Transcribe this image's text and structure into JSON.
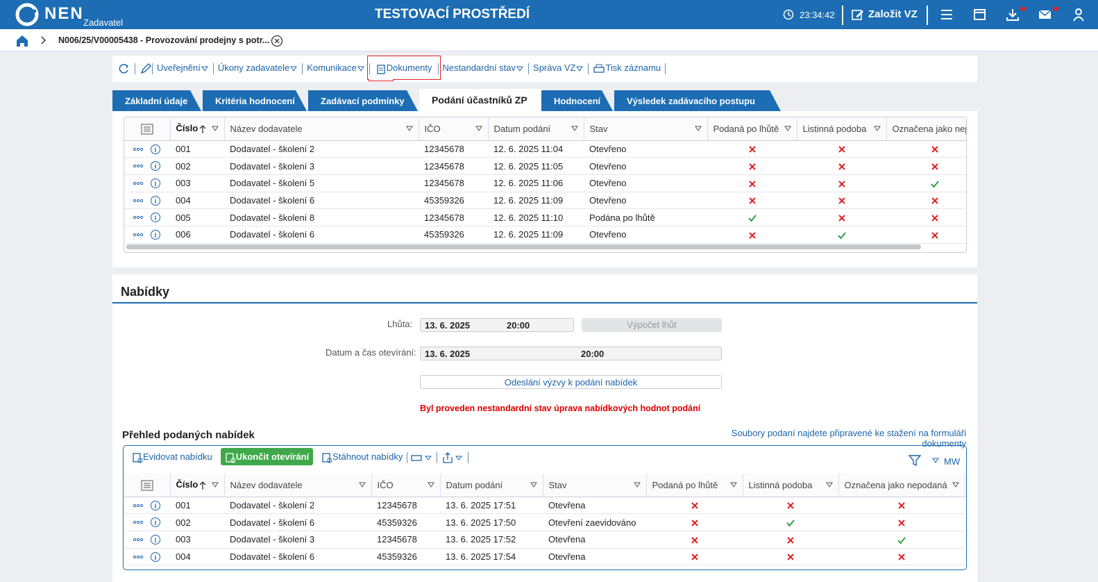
{
  "header": {
    "logo": "NEN",
    "role": "Zadavatel",
    "environment": "TESTOVACÍ PROSTŘEDÍ",
    "time": "23:34:42",
    "create": "Založit VZ"
  },
  "breadcrumb": {
    "title": "N006/25/V00005438 - Provozování prodejny s potr..."
  },
  "toolbar": [
    "Uveřejnění",
    "Úkony zadavatele",
    "Komunikace",
    "Dokumenty",
    "Nestandardní stav",
    "Správa VZ",
    "Tisk záznamu"
  ],
  "tabs": [
    "Základní údaje",
    "Kritéria hodnocení",
    "Zadávací podmínky",
    "Podání účastníků ZP",
    "Hodnocení",
    "Výsledek zadávacího postupu"
  ],
  "table1": {
    "headers": [
      "Číslo",
      "Název dodavatele",
      "IČO",
      "Datum podání",
      "Stav",
      "Podaná po lhůtě",
      "Listinná podoba",
      "Označena jako nep"
    ],
    "rows": [
      [
        "001",
        "Dodavatel - školení 2",
        "12345678",
        "12. 6. 2025 11:04",
        "Otevřeno",
        false,
        false,
        false
      ],
      [
        "002",
        "Dodavatel - školení 3",
        "12345678",
        "12. 6. 2025 11:05",
        "Otevřeno",
        false,
        false,
        false
      ],
      [
        "003",
        "Dodavatel - školení 5",
        "12345678",
        "12. 6. 2025 11:06",
        "Otevřeno",
        false,
        false,
        true
      ],
      [
        "004",
        "Dodavatel - školení 6",
        "45359326",
        "12. 6. 2025 11:09",
        "Otevřeno",
        false,
        false,
        false
      ],
      [
        "005",
        "Dodavatel - školení 8",
        "12345678",
        "12. 6. 2025 11:10",
        "Podána po lhůtě",
        true,
        false,
        false
      ],
      [
        "006",
        "Dodavatel - školení 6",
        "45359326",
        "12. 6. 2025 11:09",
        "Otevřeno",
        false,
        true,
        false
      ]
    ]
  },
  "offers": {
    "title": "Nabídky",
    "deadline_label": "Lhůta:",
    "deadline_date": "13. 6. 2025",
    "deadline_time": "20:00",
    "compute_button": "Výpočet lhůt",
    "opening_label": "Datum a čas otevírání:",
    "opening_date": "13. 6. 2025",
    "opening_time": "20:00",
    "send_button": "Odeslání výzvy k podání nabídek",
    "warning": "Byl proveden nestandardní stav úprava nabídkových hodnot podání",
    "overview_title": "Přehled podaných nabídek",
    "download_note": "Soubory podaní najdete připravené ke stažení na formuláři dokumenty",
    "actions": [
      "Evidovat nabídku",
      "Ukončit otevírání",
      "Stáhnout nabídky"
    ],
    "view": "MW"
  },
  "table2": {
    "headers": [
      "Číslo",
      "Název dodavatele",
      "IČO",
      "Datum podání",
      "Stav",
      "Podaná po lhůtě",
      "Listinná podoba",
      "Označena jako nepodaná"
    ],
    "rows": [
      [
        "001",
        "Dodavatel - školení 2",
        "12345678",
        "13. 6. 2025 17:51",
        "Otevřena",
        false,
        false,
        false
      ],
      [
        "002",
        "Dodavatel - školení 6",
        "45359326",
        "13. 6. 2025 17:50",
        "Otevření zaevidováno",
        false,
        true,
        false
      ],
      [
        "003",
        "Dodavatel - školení 3",
        "12345678",
        "13. 6. 2025 17:52",
        "Otevřena",
        false,
        false,
        true
      ],
      [
        "004",
        "Dodavatel - školení 6",
        "45359326",
        "13. 6. 2025 17:54",
        "Otevřena",
        false,
        false,
        false
      ]
    ]
  }
}
